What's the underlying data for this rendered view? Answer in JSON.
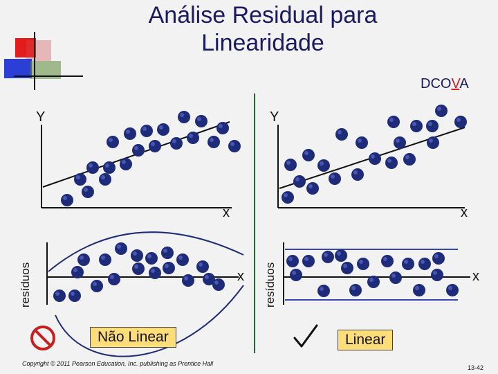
{
  "title": {
    "line1": "Análise Residual para",
    "line2": "Linearidade"
  },
  "dcova": {
    "prefix": "DCO",
    "highlight": "V",
    "suffix": "A"
  },
  "panels": {
    "left_scatter": {
      "y_label": "Y",
      "x_label": "x"
    },
    "right_scatter": {
      "y_label": "Y",
      "x_label": "x"
    },
    "left_residual": {
      "y_label": "resíduos",
      "x_label": "x"
    },
    "right_residual": {
      "y_label": "resíduos",
      "x_label": "x"
    }
  },
  "verdicts": {
    "left": {
      "label": "Não Linear",
      "icon": "no-symbol-icon"
    },
    "right": {
      "label": "Linear",
      "icon": "check-mark-icon"
    }
  },
  "footer": {
    "copyright": "Copyright © 2011 Pearson Education, Inc. publishing as Prentice Hall",
    "page": "13-42"
  },
  "colors": {
    "dot": "#1e2b78",
    "dot_highlight": "#5a6ac8",
    "title": "#1a1a60",
    "box": "#ffde7a",
    "curve": "#1e2b78",
    "band": "#3a46b0",
    "no_symbol": "#c81e1e"
  }
}
